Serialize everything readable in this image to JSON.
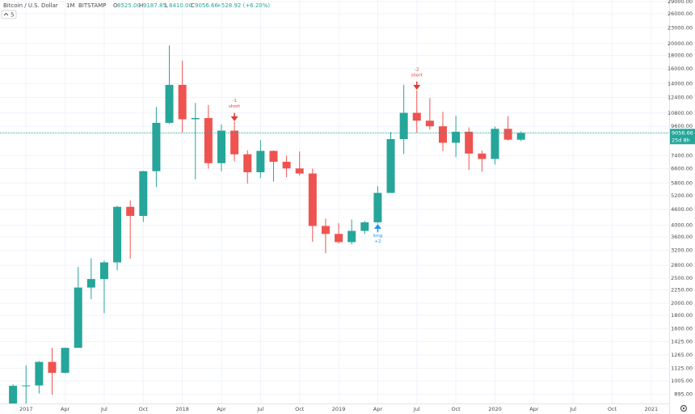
{
  "header": {
    "symbol": "Bitcoin / U.S. Dollar",
    "interval": "1M",
    "exchange": "BITSTAMP",
    "ohlc": [
      {
        "key": "O",
        "value": "8525.00"
      },
      {
        "key": "H",
        "value": "9187.85"
      },
      {
        "key": "L",
        "value": "8410.00"
      },
      {
        "key": "C",
        "value": "9056.66"
      }
    ],
    "change": "+528.92 (+6.20%)",
    "indicator": "5"
  },
  "chart_data": {
    "type": "candlestick",
    "log_scale": true,
    "grid": true,
    "up_color": "#26a69a",
    "down_color": "#ef5350",
    "x": [
      "2016-12",
      "2017-01",
      "2017-02",
      "2017-03",
      "2017-04",
      "2017-05",
      "2017-06",
      "2017-07",
      "2017-08",
      "2017-09",
      "2017-10",
      "2017-11",
      "2017-12",
      "2018-01",
      "2018-02",
      "2018-03",
      "2018-04",
      "2018-05",
      "2018-06",
      "2018-07",
      "2018-08",
      "2018-09",
      "2018-10",
      "2018-11",
      "2018-12",
      "2019-01",
      "2019-02",
      "2019-03",
      "2019-04",
      "2019-05",
      "2019-06",
      "2019-07",
      "2019-08",
      "2019-09",
      "2019-10",
      "2019-11",
      "2019-12",
      "2020-01",
      "2020-02",
      "2020-03"
    ],
    "open": [
      750,
      963,
      966,
      1190,
      1080,
      1348,
      2300,
      2480,
      2875,
      4703,
      4338,
      6450,
      9900,
      13860,
      10220,
      10330,
      6925,
      9240,
      7490,
      6390,
      7720,
      7010,
      6610,
      6320,
      3970,
      3700,
      3440,
      3800,
      4100,
      5320,
      8570,
      10820,
      10090,
      9600,
      8300,
      9150,
      7540,
      7190,
      9390,
      8525
    ],
    "high": [
      975,
      1153,
      1200,
      1350,
      1350,
      2760,
      2980,
      2920,
      4750,
      4980,
      6470,
      11395,
      19666,
      17176,
      11800,
      11600,
      9760,
      9990,
      7760,
      8490,
      7750,
      7410,
      7680,
      6600,
      4240,
      4070,
      4200,
      4150,
      5650,
      9100,
      13880,
      13200,
      12320,
      10920,
      10540,
      9510,
      7740,
      9570,
      10500,
      9187.85
    ],
    "low": [
      740,
      752,
      900,
      890,
      1075,
      1350,
      2076,
      1830,
      2680,
      2970,
      4110,
      5600,
      9800,
      9100,
      6000,
      6600,
      6430,
      7030,
      5780,
      6070,
      5880,
      6120,
      6200,
      3450,
      3120,
      3400,
      3370,
      3690,
      4060,
      5320,
      7510,
      9080,
      9320,
      7700,
      7300,
      6530,
      6430,
      6850,
      8440,
      8410
    ],
    "close": [
      963,
      966,
      1190,
      1080,
      1348,
      2300,
      2480,
      2875,
      4703,
      4338,
      6450,
      9900,
      13860,
      10220,
      10330,
      6925,
      9240,
      7490,
      6390,
      7720,
      7010,
      6610,
      6320,
      3970,
      3700,
      3440,
      3800,
      4100,
      5320,
      8570,
      10820,
      10090,
      9600,
      8300,
      9150,
      7540,
      7190,
      9390,
      8530,
      9056.66
    ],
    "xlim": [
      "2016-11",
      "2021-02"
    ],
    "xticks": [
      {
        "value": "2017-01",
        "label": "2017"
      },
      {
        "value": "2017-04",
        "label": "Apr"
      },
      {
        "value": "2017-07",
        "label": "Jul"
      },
      {
        "value": "2017-10",
        "label": "Oct"
      },
      {
        "value": "2018-01",
        "label": "2018"
      },
      {
        "value": "2018-04",
        "label": "Apr"
      },
      {
        "value": "2018-07",
        "label": "Jul"
      },
      {
        "value": "2018-10",
        "label": "Oct"
      },
      {
        "value": "2019-01",
        "label": "2019"
      },
      {
        "value": "2019-04",
        "label": "Apr"
      },
      {
        "value": "2019-07",
        "label": "Jul"
      },
      {
        "value": "2019-10",
        "label": "Oct"
      },
      {
        "value": "2020-01",
        "label": "2020"
      },
      {
        "value": "2020-04",
        "label": "Apr"
      },
      {
        "value": "2020-07",
        "label": "Jul"
      },
      {
        "value": "2020-10",
        "label": "Oct"
      },
      {
        "value": "2021-01",
        "label": "2021"
      }
    ],
    "ylim": [
      750,
      29400
    ],
    "yticks": [
      {
        "value": 29000,
        "label": "29000.00"
      },
      {
        "value": 26000,
        "label": "26000.00"
      },
      {
        "value": 23000,
        "label": "23000.00"
      },
      {
        "value": 20000,
        "label": "20000.00"
      },
      {
        "value": 18000,
        "label": "18000.00"
      },
      {
        "value": 16000,
        "label": "16000.00"
      },
      {
        "value": 14000,
        "label": "14000.00"
      },
      {
        "value": 12400,
        "label": "12400.00"
      },
      {
        "value": 10800,
        "label": "10800.00"
      },
      {
        "value": 9600,
        "label": "9600.00"
      },
      {
        "value": 7400,
        "label": "7400.00"
      },
      {
        "value": 6600,
        "label": "6600.00"
      },
      {
        "value": 5800,
        "label": "5800.00"
      },
      {
        "value": 5200,
        "label": "5200.00"
      },
      {
        "value": 4600,
        "label": "4600.00"
      },
      {
        "value": 4000,
        "label": "4000.00"
      },
      {
        "value": 3600,
        "label": "3600.00"
      },
      {
        "value": 3200,
        "label": "3200.00"
      },
      {
        "value": 2800,
        "label": "2800.00"
      },
      {
        "value": 2500,
        "label": "2500.00"
      },
      {
        "value": 2250,
        "label": "2250.00"
      },
      {
        "value": 2000,
        "label": "2000.00"
      },
      {
        "value": 1800,
        "label": "1800.00"
      },
      {
        "value": 1600,
        "label": "1600.00"
      },
      {
        "value": 1425,
        "label": "1425.00"
      },
      {
        "value": 1265,
        "label": "1265.00"
      },
      {
        "value": 1125,
        "label": "1125.00"
      },
      {
        "value": 1005,
        "label": "1005.00"
      },
      {
        "value": 895,
        "label": "895.00"
      }
    ],
    "last_price": {
      "value": 9056.66,
      "label": "9056.66"
    },
    "countdown": "25d 8h",
    "annotations": [
      {
        "x": "2018-05",
        "lines": [
          "-1",
          "short"
        ],
        "direction": "down",
        "color": "#e53935"
      },
      {
        "x": "2019-07",
        "lines": [
          "-2",
          "short"
        ],
        "direction": "down",
        "color": "#e53935"
      },
      {
        "x": "2019-04",
        "lines": [
          "long",
          "+2"
        ],
        "direction": "up",
        "color": "#2196f3"
      }
    ]
  }
}
